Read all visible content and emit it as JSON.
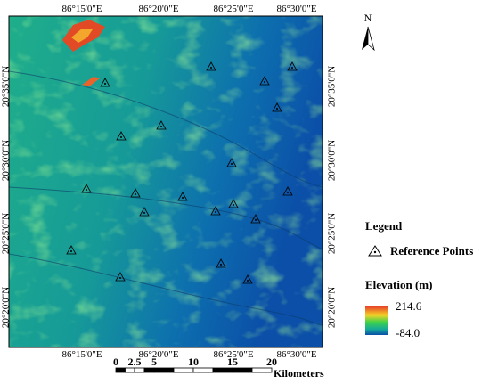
{
  "top_labels": [
    "86°15'0\"E",
    "86°20'0\"E",
    "86°25'0\"E",
    "86°30'0\"E"
  ],
  "bottom_labels": [
    "86°15'0\"E",
    "86°20'0\"E",
    "86°25'0\"E",
    "86°30'0\"E"
  ],
  "left_labels": [
    "20°35'0\"N",
    "20°30'0\"N",
    "20°25'0\"N",
    "20°20'0\"N"
  ],
  "right_labels": [
    "20°35'0\"N",
    "20°30'0\"N",
    "20°25'0\"N",
    "20°20'0\"N"
  ],
  "north": "N",
  "legend": {
    "title": "Legend",
    "reference_points": "Reference Points",
    "elevation_title": "Elevation (m)",
    "max": "214.6",
    "min": "-84.0"
  },
  "scale_bar": {
    "labels": [
      "0",
      "2.5",
      "5",
      "10",
      "15",
      "20"
    ],
    "unit": "Kilometers"
  }
}
